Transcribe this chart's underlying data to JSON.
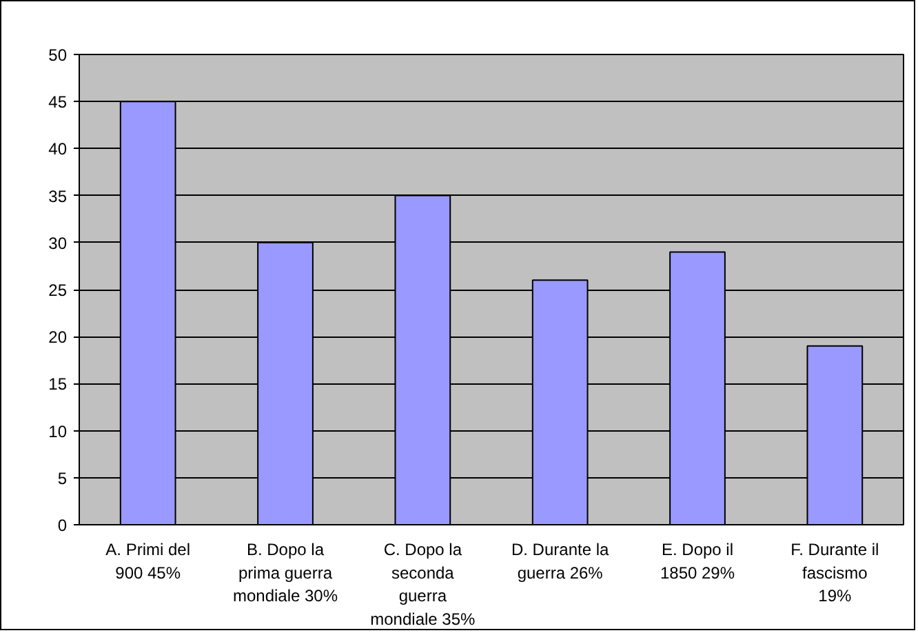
{
  "chart_data": {
    "type": "bar",
    "categories": [
      "A. Primi del\n900 45%",
      "B. Dopo la\nprima guerra\nmondiale 30%",
      "C. Dopo la\nseconda\nguerra\nmondiale 35%",
      "D. Durante la\nguerra 26%",
      "E. Dopo il\n1850 29%",
      "F. Durante il\nfascismo\n19%"
    ],
    "values": [
      45,
      30,
      35,
      26,
      29,
      19
    ],
    "color": "#9999ff",
    "ylim": [
      0,
      50
    ],
    "yticks": [
      0,
      5,
      10,
      15,
      20,
      25,
      30,
      35,
      40,
      45,
      50
    ],
    "grid": "y"
  }
}
